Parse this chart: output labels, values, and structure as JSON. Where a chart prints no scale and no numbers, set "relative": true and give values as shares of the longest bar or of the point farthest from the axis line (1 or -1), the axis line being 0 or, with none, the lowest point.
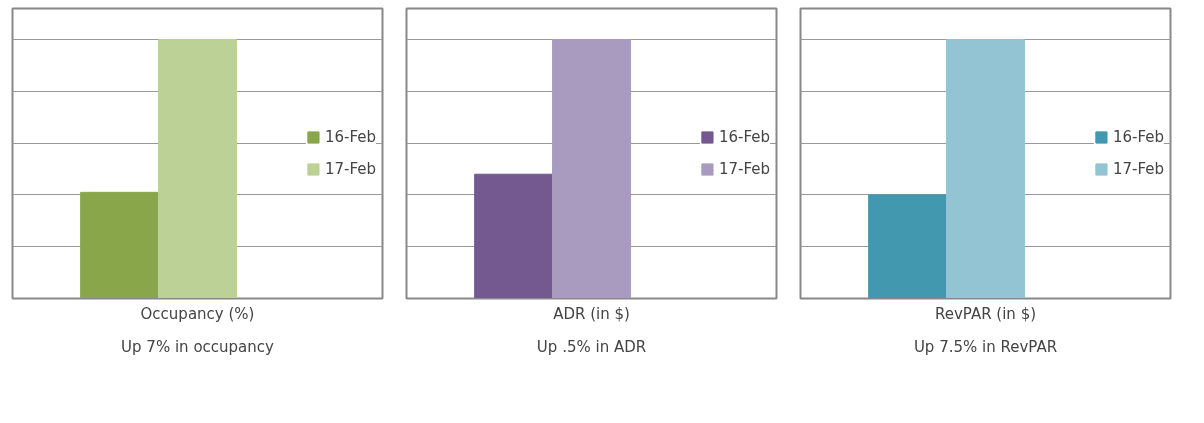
{
  "chart_data": [
    {
      "type": "bar",
      "relative": true,
      "categories": [
        null
      ],
      "xlabel": "Occupancy (%)",
      "grid": "y",
      "legend": "right",
      "annotations": [
        "Up 7% in occupancy"
      ],
      "series": [
        {
          "name": "16-Feb",
          "color": "#8aa64b",
          "values": [
            0.41
          ]
        },
        {
          "name": "17-Feb",
          "color": "#bcd196",
          "values": [
            1
          ]
        }
      ]
    },
    {
      "type": "bar",
      "relative": true,
      "categories": [
        null
      ],
      "xlabel": "ADR (in $)",
      "grid": "y",
      "legend": "right",
      "annotations": [
        "Up .5% in ADR"
      ],
      "series": [
        {
          "name": "16-Feb",
          "color": "#735990",
          "values": [
            0.48
          ]
        },
        {
          "name": "17-Feb",
          "color": "#a99bc0",
          "values": [
            1
          ]
        }
      ]
    },
    {
      "type": "bar",
      "relative": true,
      "categories": [
        null
      ],
      "xlabel": "RevPAR (in $)",
      "grid": "y",
      "legend": "right",
      "annotations": [
        "Up 7.5% in RevPAR"
      ],
      "series": [
        {
          "name": "16-Feb",
          "color": "#4198af",
          "values": [
            0.4
          ]
        },
        {
          "name": "17-Feb",
          "color": "#93c4d4",
          "values": [
            1
          ]
        }
      ]
    }
  ]
}
